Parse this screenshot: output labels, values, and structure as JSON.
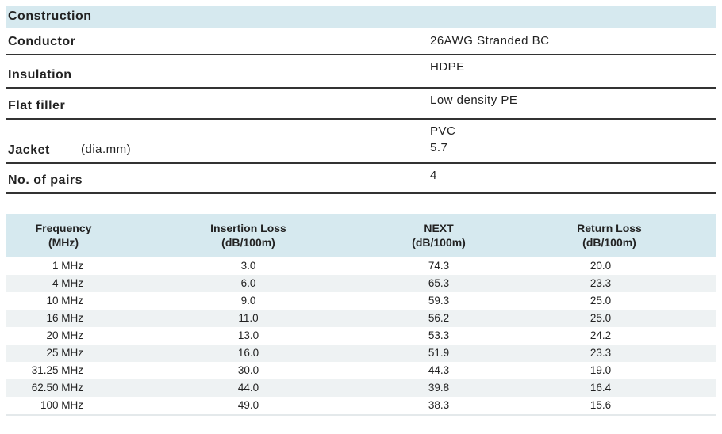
{
  "construction": {
    "title": "Construction",
    "rows": [
      {
        "label": "Conductor",
        "values": [
          "26AWG Stranded BC"
        ]
      },
      {
        "label": "Insulation",
        "values": [
          "HDPE"
        ]
      },
      {
        "label": "Flat filler",
        "values": [
          "Low density PE"
        ]
      },
      {
        "label": "Jacket",
        "unit": "(dia.mm)",
        "values": [
          "PVC",
          "5.7"
        ]
      },
      {
        "label": "No. of pairs",
        "values": [
          "4"
        ]
      }
    ]
  },
  "table": {
    "headers": [
      [
        "Frequency",
        "(MHz)"
      ],
      [
        "Insertion Loss",
        "(dB/100m)"
      ],
      [
        "NEXT",
        "(dB/100m)"
      ],
      [
        "Return Loss",
        "(dB/100m)"
      ]
    ],
    "rows": [
      [
        "1 MHz",
        "3.0",
        "74.3",
        "20.0"
      ],
      [
        "4 MHz",
        "6.0",
        "65.3",
        "23.3"
      ],
      [
        "10 MHz",
        "9.0",
        "59.3",
        "25.0"
      ],
      [
        "16 MHz",
        "11.0",
        "56.2",
        "25.0"
      ],
      [
        "20 MHz",
        "13.0",
        "53.3",
        "24.2"
      ],
      [
        "25 MHz",
        "16.0",
        "51.9",
        "23.3"
      ],
      [
        "31.25 MHz",
        "30.0",
        "44.3",
        "19.0"
      ],
      [
        "62.50 MHz",
        "44.0",
        "39.8",
        "16.4"
      ],
      [
        "100 MHz",
        "49.0",
        "38.3",
        "15.6"
      ]
    ]
  }
}
